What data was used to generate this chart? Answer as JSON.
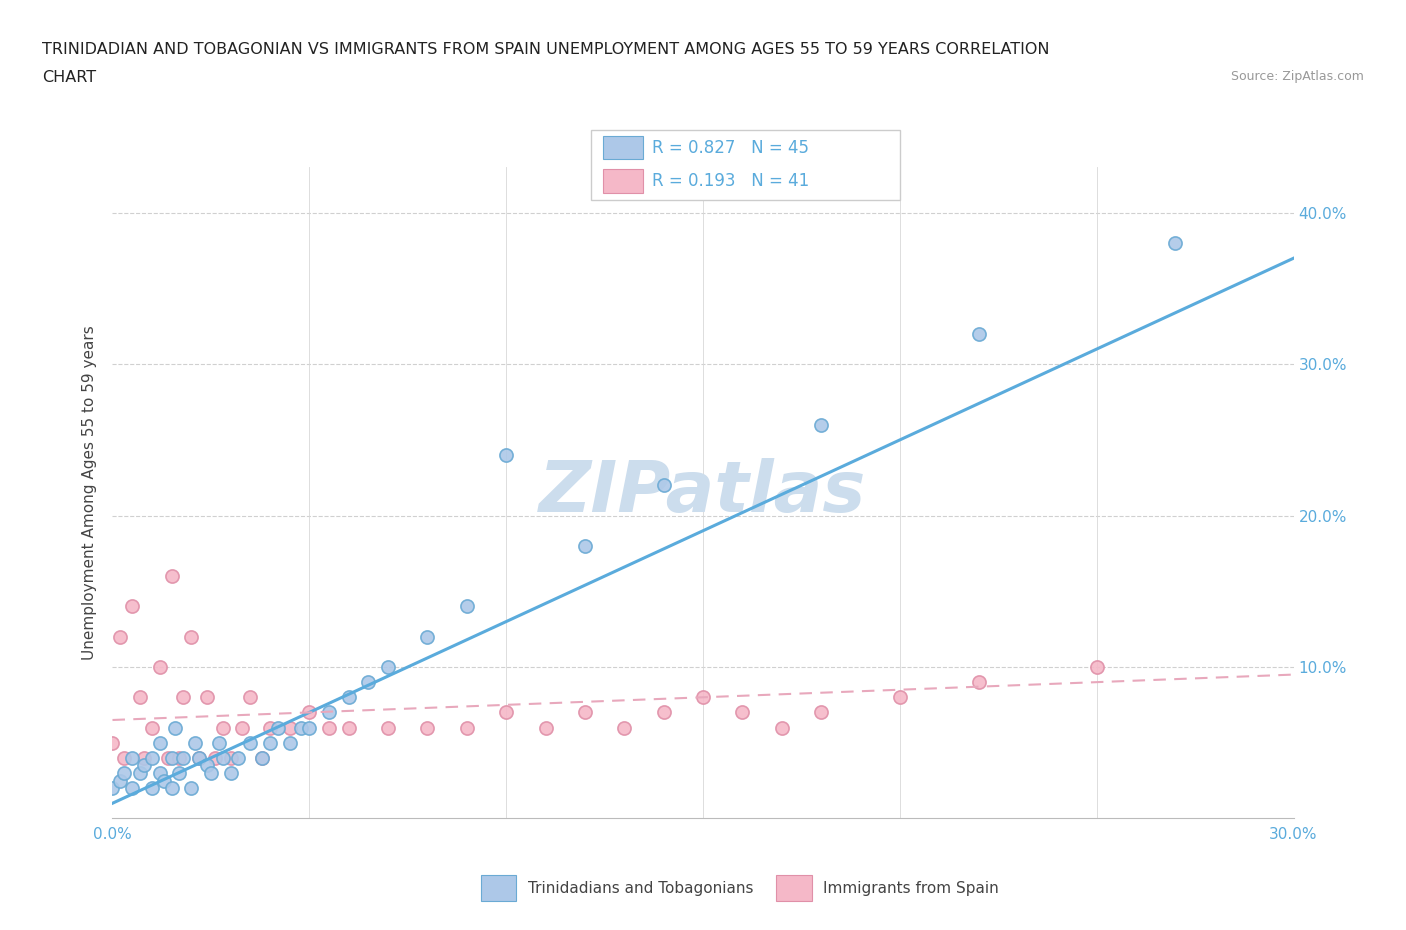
{
  "title_line1": "TRINIDADIAN AND TOBAGONIAN VS IMMIGRANTS FROM SPAIN UNEMPLOYMENT AMONG AGES 55 TO 59 YEARS CORRELATION",
  "title_line2": "CHART",
  "source": "Source: ZipAtlas.com",
  "ylabel": "Unemployment Among Ages 55 to 59 years",
  "xlim": [
    0.0,
    0.3
  ],
  "ylim": [
    0.0,
    0.43
  ],
  "R_blue": 0.827,
  "N_blue": 45,
  "R_pink": 0.193,
  "N_pink": 41,
  "blue_fill": "#adc8e8",
  "blue_edge": "#6aaad4",
  "pink_fill": "#f5b8c8",
  "pink_edge": "#e090a8",
  "blue_line": "#5aabdc",
  "pink_line": "#e8a8bc",
  "watermark": "ZIPatlas",
  "watermark_color": "#ccdded",
  "trinidadian_x": [
    0.0,
    0.002,
    0.003,
    0.005,
    0.005,
    0.007,
    0.008,
    0.01,
    0.01,
    0.012,
    0.012,
    0.013,
    0.015,
    0.015,
    0.016,
    0.017,
    0.018,
    0.02,
    0.021,
    0.022,
    0.024,
    0.025,
    0.027,
    0.028,
    0.03,
    0.032,
    0.035,
    0.038,
    0.04,
    0.042,
    0.045,
    0.048,
    0.05,
    0.055,
    0.06,
    0.065,
    0.07,
    0.08,
    0.09,
    0.1,
    0.12,
    0.14,
    0.18,
    0.22,
    0.27
  ],
  "trinidadian_y": [
    0.02,
    0.025,
    0.03,
    0.02,
    0.04,
    0.03,
    0.035,
    0.02,
    0.04,
    0.03,
    0.05,
    0.025,
    0.02,
    0.04,
    0.06,
    0.03,
    0.04,
    0.02,
    0.05,
    0.04,
    0.035,
    0.03,
    0.05,
    0.04,
    0.03,
    0.04,
    0.05,
    0.04,
    0.05,
    0.06,
    0.05,
    0.06,
    0.06,
    0.07,
    0.08,
    0.09,
    0.1,
    0.12,
    0.14,
    0.24,
    0.18,
    0.22,
    0.26,
    0.32,
    0.38
  ],
  "spain_x": [
    0.0,
    0.002,
    0.003,
    0.005,
    0.007,
    0.008,
    0.01,
    0.012,
    0.014,
    0.015,
    0.017,
    0.018,
    0.02,
    0.022,
    0.024,
    0.026,
    0.028,
    0.03,
    0.033,
    0.035,
    0.038,
    0.04,
    0.045,
    0.05,
    0.055,
    0.06,
    0.07,
    0.08,
    0.09,
    0.1,
    0.11,
    0.12,
    0.13,
    0.14,
    0.15,
    0.16,
    0.17,
    0.18,
    0.2,
    0.22,
    0.25
  ],
  "spain_y": [
    0.05,
    0.12,
    0.04,
    0.14,
    0.08,
    0.04,
    0.06,
    0.1,
    0.04,
    0.16,
    0.04,
    0.08,
    0.12,
    0.04,
    0.08,
    0.04,
    0.06,
    0.04,
    0.06,
    0.08,
    0.04,
    0.06,
    0.06,
    0.07,
    0.06,
    0.06,
    0.06,
    0.06,
    0.06,
    0.07,
    0.06,
    0.07,
    0.06,
    0.07,
    0.08,
    0.07,
    0.06,
    0.07,
    0.08,
    0.09,
    0.1
  ]
}
